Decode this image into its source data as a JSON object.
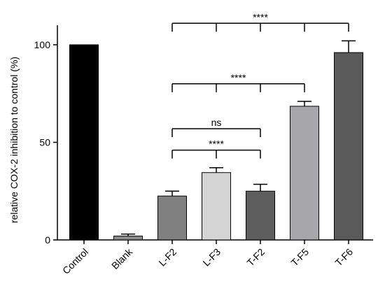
{
  "chart_data": {
    "type": "bar",
    "ylabel": "relative COX-2 inhibition to control (%)",
    "xlabel": "",
    "ylim": [
      0,
      110
    ],
    "yticks": [
      0,
      50,
      100
    ],
    "categories": [
      "Control",
      "Blank",
      "L-F2",
      "L-F3",
      "T-F2",
      "T-F5",
      "T-F6"
    ],
    "values": [
      100,
      2,
      22.5,
      34.5,
      25,
      68.5,
      96
    ],
    "errors": [
      0,
      1,
      2.5,
      2.5,
      3.5,
      2.5,
      6
    ],
    "colors": [
      "#000000",
      "#8c8c8c",
      "#808080",
      "#d4d4d4",
      "#5e5e5e",
      "#a6a6ab",
      "#5a5a5a"
    ],
    "significance": [
      {
        "label": "****",
        "from": 2,
        "to": 6,
        "stems": [
          2,
          3,
          4,
          5,
          6
        ],
        "y": 111
      },
      {
        "label": "****",
        "from": 2,
        "to": 5,
        "stems": [
          2,
          3,
          4,
          5
        ],
        "y": 80
      },
      {
        "label": "ns",
        "from": 2,
        "to": 4,
        "stems": [
          2,
          4
        ],
        "y": 57
      },
      {
        "label": "****",
        "from": 2,
        "to": 4,
        "stems": [
          2,
          3,
          4
        ],
        "y": 46
      }
    ]
  }
}
